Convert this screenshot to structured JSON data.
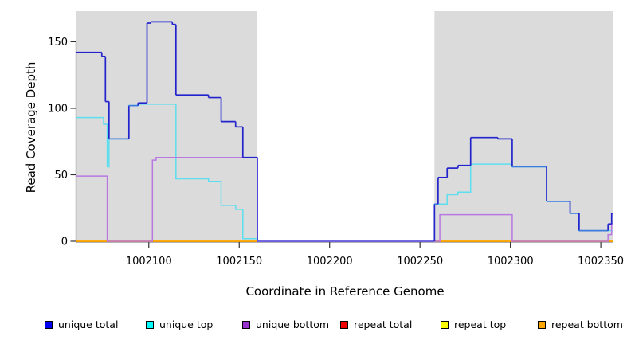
{
  "chart_data": {
    "type": "line",
    "subtype": "step",
    "title": "",
    "xlabel": "Coordinate in Reference Genome",
    "ylabel": "Read Coverage Depth",
    "xlim": [
      1002060,
      1002357
    ],
    "ylim": [
      0,
      173
    ],
    "xticks": [
      1002100,
      1002150,
      1002200,
      1002250,
      1002300,
      1002350
    ],
    "yticks": [
      0,
      50,
      100,
      150
    ],
    "grid": "off",
    "legend_position": "bottom",
    "background_shading": {
      "color": "#dbdbdb",
      "regions": [
        [
          1002060,
          1002160
        ],
        [
          1002258,
          1002357
        ]
      ]
    },
    "masked_gap": [
      1002160,
      1002258
    ],
    "axis_color": "#333333",
    "series": [
      {
        "name": "unique total",
        "legend_color": "#0000ee",
        "line_color": "#2323cd",
        "overlap_line_color": "#3e7bdf",
        "gap_line_color": "#6b5ce0",
        "steps": [
          [
            1002060,
            142
          ],
          [
            1002074,
            139
          ],
          [
            1002076,
            105
          ],
          [
            1002078,
            77
          ],
          [
            1002089,
            102
          ],
          [
            1002094,
            104
          ],
          [
            1002099,
            164
          ],
          [
            1002101,
            165
          ],
          [
            1002113,
            163
          ],
          [
            1002115,
            110
          ],
          [
            1002133,
            108
          ],
          [
            1002140,
            90
          ],
          [
            1002148,
            86
          ],
          [
            1002152,
            63
          ],
          [
            1002160,
            0
          ],
          [
            1002258,
            28
          ],
          [
            1002260,
            48
          ],
          [
            1002265,
            55
          ],
          [
            1002271,
            57
          ],
          [
            1002278,
            78
          ],
          [
            1002293,
            77
          ],
          [
            1002301,
            56
          ],
          [
            1002320,
            30
          ],
          [
            1002333,
            21
          ],
          [
            1002338,
            8
          ],
          [
            1002354,
            13
          ],
          [
            1002356,
            21
          ]
        ]
      },
      {
        "name": "unique top",
        "legend_color": "#00ffff",
        "line_color": "#5cdeee",
        "steps": [
          [
            1002060,
            93
          ],
          [
            1002075,
            88
          ],
          [
            1002077,
            56
          ],
          [
            1002078,
            77
          ],
          [
            1002089,
            102
          ],
          [
            1002094,
            103
          ],
          [
            1002115,
            47
          ],
          [
            1002133,
            45
          ],
          [
            1002140,
            27
          ],
          [
            1002148,
            24
          ],
          [
            1002152,
            2
          ],
          [
            1002160,
            0
          ],
          [
            1002258,
            28
          ],
          [
            1002265,
            35
          ],
          [
            1002271,
            37
          ],
          [
            1002278,
            58
          ],
          [
            1002301,
            56
          ],
          [
            1002320,
            30
          ],
          [
            1002333,
            21
          ],
          [
            1002338,
            8
          ]
        ]
      },
      {
        "name": "unique bottom",
        "legend_color": "#9932cc",
        "line_color": "#b878e2",
        "steps": [
          [
            1002060,
            49
          ],
          [
            1002077,
            0
          ],
          [
            1002102,
            61
          ],
          [
            1002104,
            63
          ],
          [
            1002160,
            0
          ],
          [
            1002261,
            20
          ],
          [
            1002301,
            0
          ],
          [
            1002354,
            5
          ],
          [
            1002356,
            13
          ]
        ]
      },
      {
        "name": "repeat total",
        "legend_color": "#ee0000",
        "line_color": "#ee0000",
        "draw_only_in_shaded": true,
        "steps": [
          [
            1002060,
            0
          ]
        ]
      },
      {
        "name": "repeat top",
        "legend_color": "#ffff00",
        "line_color": "#ffff00",
        "draw_only_in_shaded": true,
        "steps": [
          [
            1002060,
            0
          ]
        ]
      },
      {
        "name": "repeat bottom",
        "legend_color": "#ffa500",
        "line_color": "#ffa500",
        "draw_only_in_shaded": true,
        "steps": [
          [
            1002060,
            0
          ]
        ]
      }
    ]
  },
  "legend": {
    "items": [
      {
        "label": "unique total",
        "color": "#0000ee"
      },
      {
        "label": "unique top",
        "color": "#00ffff"
      },
      {
        "label": "unique bottom",
        "color": "#9932cc"
      },
      {
        "label": "repeat total",
        "color": "#ee0000"
      },
      {
        "label": "repeat top",
        "color": "#ffff00"
      },
      {
        "label": "repeat bottom",
        "color": "#ffa500"
      }
    ]
  }
}
